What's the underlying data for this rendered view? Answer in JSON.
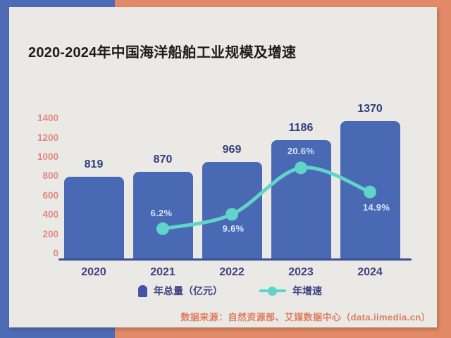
{
  "title": "2020-2024年中国海洋船舶工业规模及增速",
  "source": "数据来源：自然资源部、艾媒数据中心（data.iimedia.cn）",
  "legend": [
    {
      "label": "年总量（亿元）"
    },
    {
      "label": "年增速"
    }
  ],
  "colors": {
    "bg-blue": "#4d6cb5",
    "bg-orange": "#e28a68",
    "card": "#eae9e6",
    "bar": "#4a69b5",
    "axis": "#3d5295",
    "value-label": "#2f3e7c",
    "x-label": "#413f80",
    "y-label": "#e08a82",
    "teal": "#5fd4c8",
    "pct-label": "#d3e3f6",
    "title": "#1d1d1d",
    "source": "#de7e5e",
    "legend-icon": "#4355a2",
    "legend-text": "#3a3f80"
  },
  "chart_data": {
    "type": "bar",
    "title": "2020-2024年中国海洋船舶工业规模及增速",
    "categories": [
      "2020",
      "2021",
      "2022",
      "2023",
      "2024"
    ],
    "series": [
      {
        "name": "年总量（亿元）",
        "type": "bar",
        "unit": "亿元",
        "values": [
          819,
          870,
          969,
          1186,
          1370
        ]
      },
      {
        "name": "年增速",
        "type": "line",
        "unit": "%",
        "values": [
          null,
          6.2,
          9.6,
          20.6,
          14.9
        ]
      }
    ],
    "yticks": [
      0,
      200,
      400,
      600,
      800,
      1000,
      1200,
      1400
    ],
    "ylim": [
      0,
      1400
    ],
    "grid": false,
    "legend_position": "bottom"
  }
}
